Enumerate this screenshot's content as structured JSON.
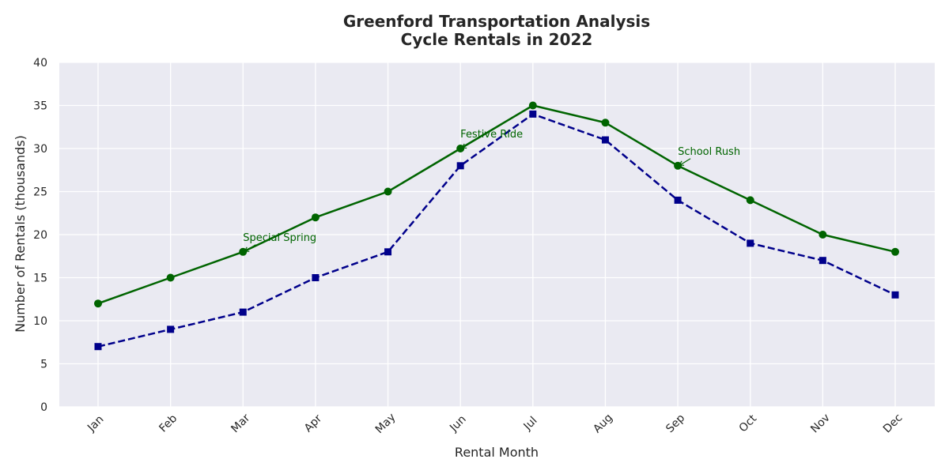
{
  "chart_data": {
    "type": "line",
    "title_line1": "Greenford Transportation Analysis",
    "title_line2": "Cycle Rentals in 2022",
    "xlabel": "Rental Month",
    "ylabel": "Number of Rentals (thousands)",
    "categories": [
      "Jan",
      "Feb",
      "Mar",
      "Apr",
      "May",
      "Jun",
      "Jul",
      "Aug",
      "Sep",
      "Oct",
      "Nov",
      "Dec"
    ],
    "ylim": [
      0,
      40
    ],
    "yticks": [
      0,
      5,
      10,
      15,
      20,
      25,
      30,
      35,
      40
    ],
    "grid": true,
    "legend": "none",
    "series": [
      {
        "values": [
          12,
          15,
          18,
          22,
          25,
          30,
          35,
          33,
          28,
          24,
          20,
          18
        ],
        "color": "#006400",
        "line_style": "solid",
        "marker": "circle"
      },
      {
        "values": [
          7,
          9,
          11,
          15,
          18,
          28,
          34,
          31,
          24,
          19,
          17,
          13
        ],
        "color": "#00008b",
        "line_style": "dashed",
        "marker": "square"
      }
    ],
    "annotations": [
      {
        "text": "Special Spring",
        "category": "Mar",
        "value": 18,
        "color": "#006400"
      },
      {
        "text": "Festive Ride",
        "category": "Jun",
        "value": 30,
        "color": "#006400"
      },
      {
        "text": "School Rush",
        "category": "Sep",
        "value": 28,
        "color": "#006400"
      }
    ],
    "plot_background": "#eaeaf2",
    "grid_color": "#ffffff"
  }
}
